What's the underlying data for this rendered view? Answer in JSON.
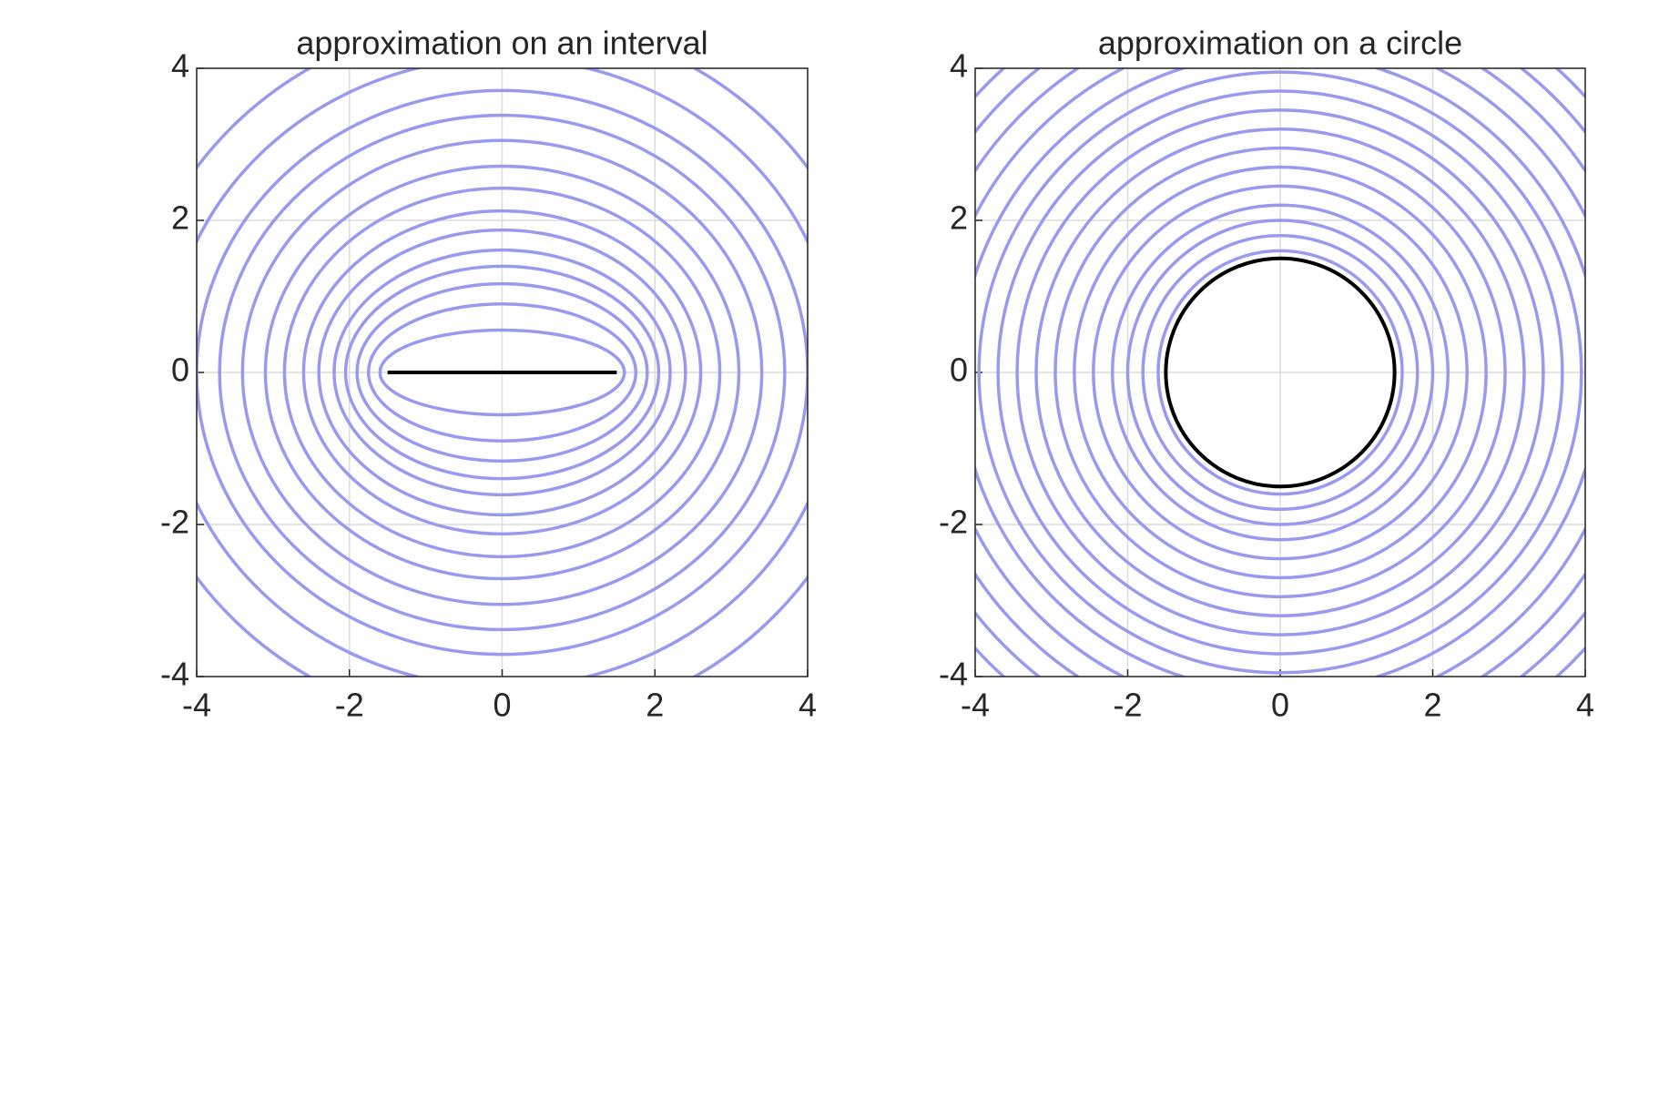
{
  "chart_data": [
    {
      "type": "contour_ellipse",
      "title": "approximation on an interval",
      "xlim": [
        -4,
        4
      ],
      "ylim": [
        -4,
        4
      ],
      "xticks": [
        -4,
        -2,
        0,
        2,
        4
      ],
      "yticks": [
        -4,
        -2,
        0,
        2,
        4
      ],
      "grid": true,
      "color": "#9999f0",
      "set_color": "#000000",
      "focus": 1.5,
      "levels": [
        1.6,
        1.75,
        1.9,
        2.05,
        2.2,
        2.4,
        2.6,
        2.85,
        3.1,
        3.4,
        3.7,
        4.0,
        4.4,
        4.9
      ],
      "interval": [
        -1.5,
        1.5
      ]
    },
    {
      "type": "contour_circle",
      "title": "approximation on a circle",
      "xlim": [
        -4,
        4
      ],
      "ylim": [
        -4,
        4
      ],
      "xticks": [
        -4,
        -2,
        0,
        2,
        4
      ],
      "yticks": [
        -4,
        -2,
        0,
        2,
        4
      ],
      "grid": true,
      "color": "#9999f0",
      "set_color": "#000000",
      "levels": [
        1.6,
        1.8,
        2.0,
        2.2,
        2.45,
        2.7,
        2.95,
        3.2,
        3.45,
        3.7,
        3.95,
        4.2,
        4.5,
        4.8,
        5.1,
        5.4
      ],
      "radius": 1.5
    }
  ]
}
